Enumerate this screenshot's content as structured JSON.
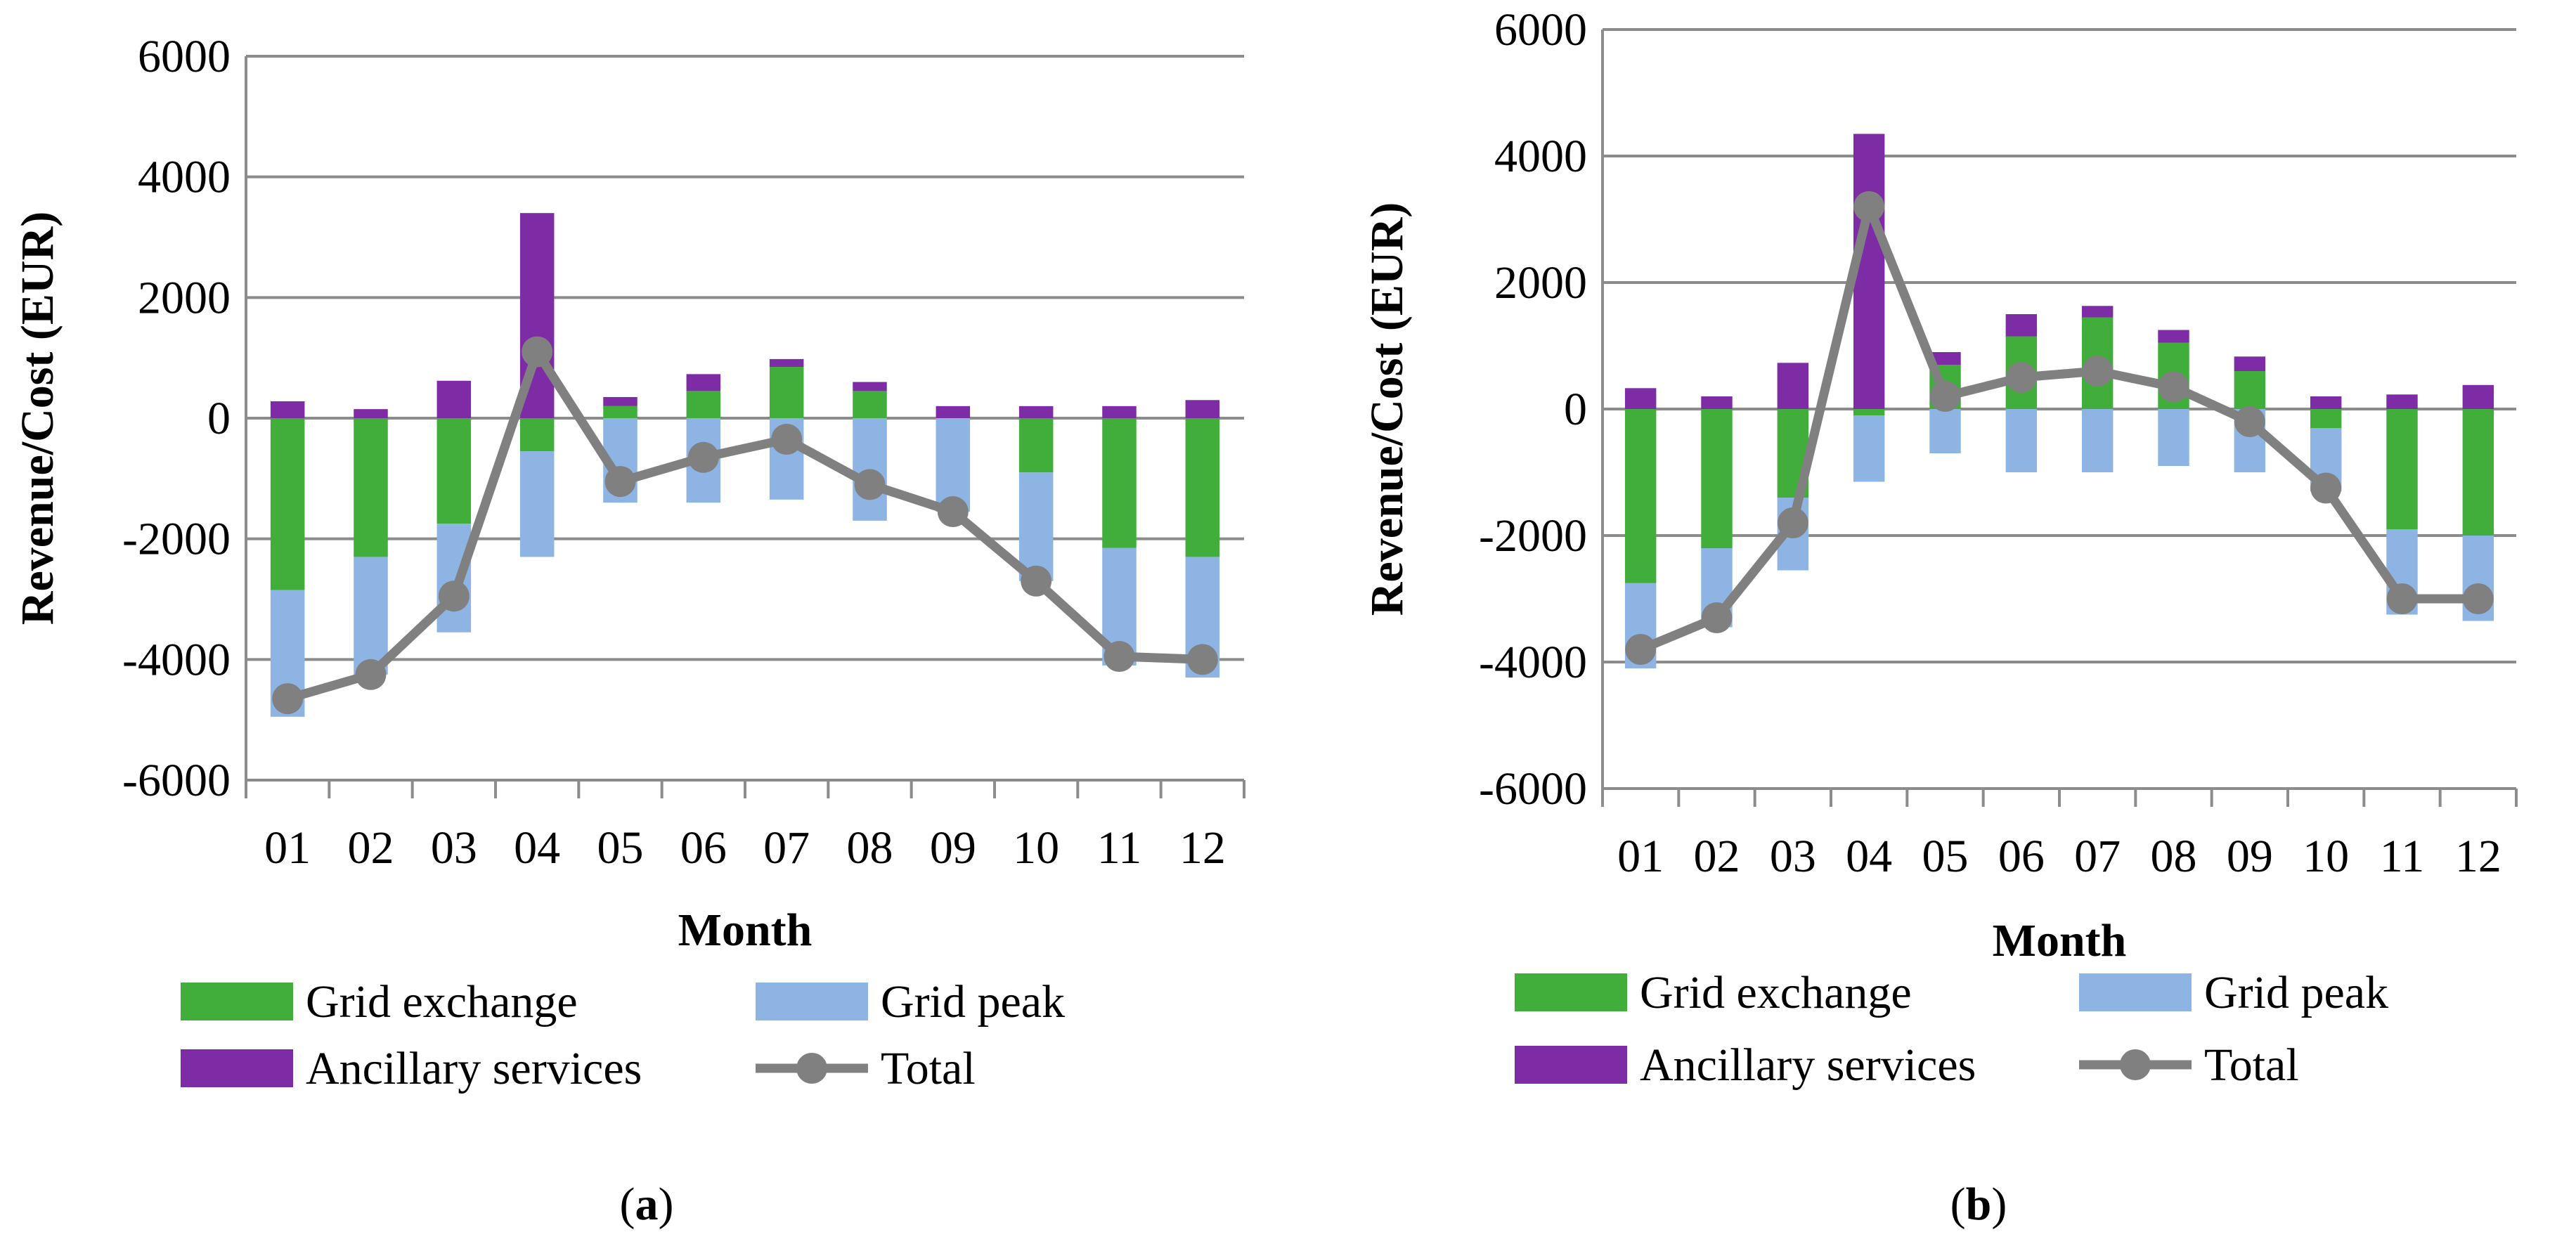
{
  "chart_data": [
    {
      "panel": "a",
      "type": "bar",
      "stacked": true,
      "xlabel": "Month",
      "ylabel": "Revenue/Cost (EUR)",
      "ylim": [
        -6000,
        6000
      ],
      "yticks": [
        6000,
        4000,
        2000,
        0,
        -2000,
        -4000,
        -6000
      ],
      "ytick_labels": [
        "6000",
        "4000",
        "2000",
        "0",
        "-2000",
        "-4000",
        "-6000"
      ],
      "categories": [
        "01",
        "02",
        "03",
        "04",
        "05",
        "06",
        "07",
        "08",
        "09",
        "10",
        "11",
        "12"
      ],
      "series": [
        {
          "name": "Grid exchange",
          "type": "bar",
          "color": "#41AD3A",
          "values": [
            -2850,
            -2300,
            -1750,
            -550,
            200,
            450,
            850,
            450,
            0,
            -900,
            -2150,
            -2300
          ]
        },
        {
          "name": "Grid peak",
          "type": "bar",
          "color": "#8DB4E2",
          "values": [
            -2100,
            -1950,
            -1800,
            -1750,
            -1400,
            -1400,
            -1350,
            -1700,
            -1550,
            -1800,
            -1950,
            -2000
          ]
        },
        {
          "name": "Ancillary services",
          "type": "bar",
          "color": "#7E2BA6",
          "values": [
            280,
            150,
            620,
            3400,
            150,
            280,
            130,
            150,
            200,
            200,
            200,
            300
          ]
        },
        {
          "name": "Total",
          "type": "line",
          "color": "#808080",
          "values": [
            -4650,
            -4250,
            -2950,
            1100,
            -1050,
            -650,
            -350,
            -1100,
            -1550,
            -2700,
            -3950,
            -4000
          ]
        }
      ],
      "caption": "a"
    },
    {
      "panel": "b",
      "type": "bar",
      "stacked": true,
      "xlabel": "Month",
      "ylabel": "Revenue/Cost (EUR)",
      "ylim": [
        -6000,
        6000
      ],
      "yticks": [
        6000,
        4000,
        2000,
        0,
        -2000,
        -4000,
        -6000
      ],
      "ytick_labels": [
        "6000",
        "4000",
        "2000",
        "0",
        "-2000",
        "-4000",
        "-6000"
      ],
      "categories": [
        "01",
        "02",
        "03",
        "04",
        "05",
        "06",
        "07",
        "08",
        "09",
        "10",
        "11",
        "12"
      ],
      "series": [
        {
          "name": "Grid exchange",
          "type": "bar",
          "color": "#41AD3A",
          "values": [
            -2750,
            -2200,
            -1400,
            -100,
            700,
            1150,
            1450,
            1050,
            600,
            -300,
            -1900,
            -2000
          ]
        },
        {
          "name": "Grid peak",
          "type": "bar",
          "color": "#8DB4E2",
          "values": [
            -1350,
            -1250,
            -1150,
            -1050,
            -700,
            -1000,
            -1000,
            -900,
            -1000,
            -1000,
            -1350,
            -1350
          ]
        },
        {
          "name": "Ancillary services",
          "type": "bar",
          "color": "#7E2BA6",
          "values": [
            330,
            200,
            730,
            4350,
            200,
            350,
            180,
            200,
            230,
            200,
            230,
            380
          ]
        },
        {
          "name": "Total",
          "type": "line",
          "color": "#808080",
          "values": [
            -3800,
            -3300,
            -1800,
            3200,
            200,
            500,
            600,
            350,
            -200,
            -1250,
            -3000,
            -3000
          ]
        }
      ],
      "caption": "b"
    }
  ],
  "captions": {
    "a": {
      "open": "(",
      "letter": "a",
      "close": ")"
    },
    "b": {
      "open": "(",
      "letter": "b",
      "close": ")"
    }
  }
}
